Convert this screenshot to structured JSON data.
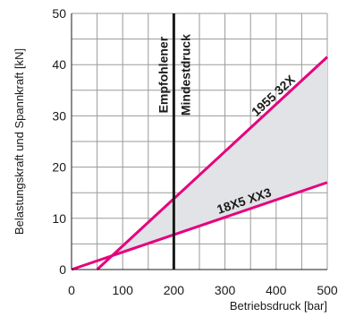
{
  "chart_data": {
    "type": "line",
    "xlabel": "Betriebsdruck [bar]",
    "ylabel": "Belastungskraft und Spannkraft [kN]",
    "xlim": [
      0,
      500
    ],
    "ylim": [
      0,
      50
    ],
    "xticks": [
      0,
      100,
      200,
      300,
      400,
      500
    ],
    "yticks": [
      0,
      10,
      20,
      30,
      40,
      50
    ],
    "grid": true,
    "series": [
      {
        "name": "1955 32X",
        "color": "#e6007e",
        "x": [
          50,
          500
        ],
        "y": [
          0,
          41.5
        ]
      },
      {
        "name": "18X5 XX3",
        "color": "#e6007e",
        "x": [
          0,
          500
        ],
        "y": [
          0,
          17
        ]
      }
    ],
    "shaded_region": {
      "between": [
        "1955 32X",
        "18X5 XX3"
      ],
      "x_from": 72,
      "x_to": 500,
      "color": "#e1e3e6"
    },
    "reference_line": {
      "x": 200,
      "color": "#1a1a1a",
      "label_line1": "Empfohlener",
      "label_line2": "Mindestdruck"
    }
  }
}
